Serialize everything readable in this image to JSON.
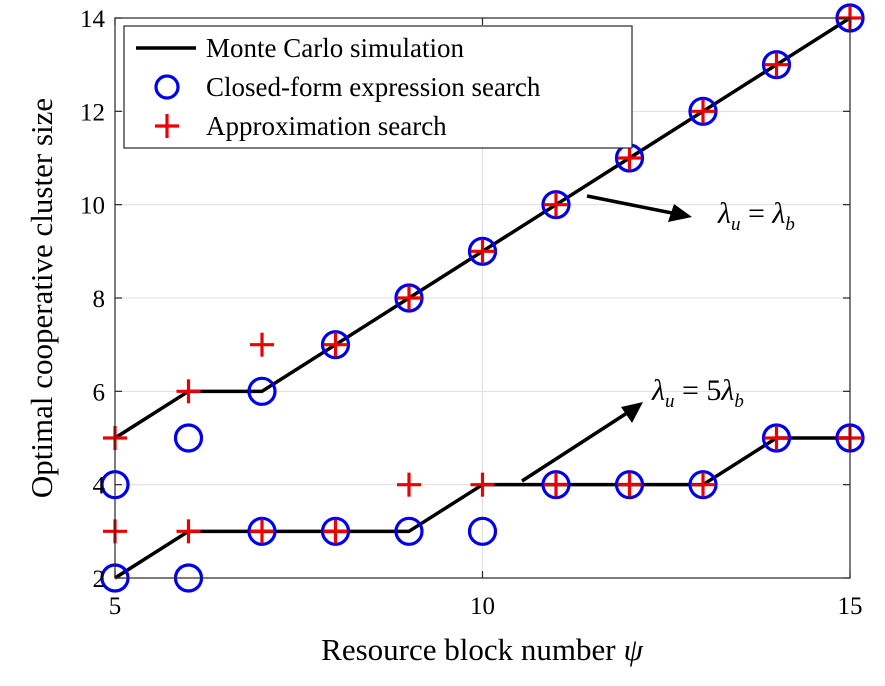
{
  "chart_data": {
    "type": "line",
    "xlabel": "Resource block number",
    "xlabel_symbol": "ψ",
    "ylabel": "Optimal cooperative cluster size",
    "xlim": [
      5,
      15
    ],
    "ylim": [
      2,
      14
    ],
    "x_ticks": [
      5,
      10,
      15
    ],
    "y_ticks": [
      2,
      4,
      6,
      8,
      10,
      12,
      14
    ],
    "grid": true,
    "legend_position": "top-left",
    "colors": {
      "simulation": "#000000",
      "closed_form": "#0000ee",
      "approximation": "#ee0000"
    },
    "legend": [
      {
        "key": "simulation",
        "label": "Monte Carlo simulation",
        "marker": "line"
      },
      {
        "key": "closed_form",
        "label": "Closed-form expression search",
        "marker": "circle"
      },
      {
        "key": "approximation",
        "label": "Approximation search",
        "marker": "plus"
      }
    ],
    "x": [
      5,
      6,
      7,
      8,
      9,
      10,
      11,
      12,
      13,
      14,
      15
    ],
    "groups": [
      {
        "annotation": "λu = λb",
        "annotation_parts": {
          "lhs": "λ",
          "lhs_sub": "u",
          "eq": " = ",
          "coef": "",
          "rhs": "λ",
          "rhs_sub": "b"
        },
        "simulation": [
          5,
          6,
          6,
          7,
          8,
          9,
          10,
          11,
          12,
          13,
          14
        ],
        "closed_form": [
          4,
          5,
          6,
          7,
          8,
          9,
          10,
          11,
          12,
          13,
          14
        ],
        "approximation": [
          5,
          6,
          7,
          7,
          8,
          9,
          10,
          11,
          12,
          13,
          14
        ]
      },
      {
        "annotation": "λu = 5λb",
        "annotation_parts": {
          "lhs": "λ",
          "lhs_sub": "u",
          "eq": " = ",
          "coef": "5",
          "rhs": "λ",
          "rhs_sub": "b"
        },
        "simulation": [
          2,
          3,
          3,
          3,
          3,
          4,
          4,
          4,
          4,
          5,
          5
        ],
        "closed_form": [
          2,
          2,
          3,
          3,
          3,
          3,
          4,
          4,
          4,
          5,
          5
        ],
        "approximation": [
          3,
          3,
          3,
          3,
          4,
          4,
          4,
          4,
          4,
          5,
          5
        ]
      }
    ]
  }
}
